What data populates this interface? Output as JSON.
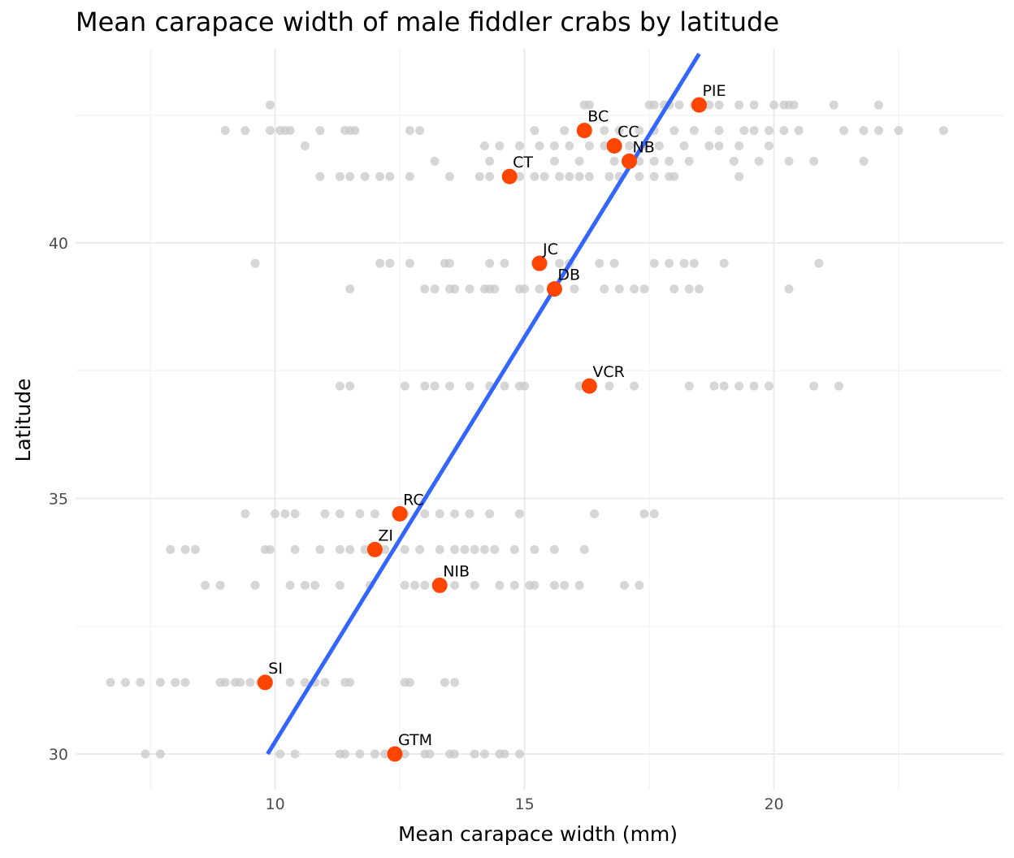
{
  "chart_data": {
    "type": "scatter",
    "title": "Mean carapace width of male fiddler crabs by latitude",
    "xlabel": "Mean carapace width (mm)",
    "ylabel": "Latitude",
    "xlim": [
      6.0,
      24.6
    ],
    "ylim": [
      29.3,
      43.8
    ],
    "x_ticks": [
      10,
      15,
      20
    ],
    "y_ticks": [
      30,
      35,
      40
    ],
    "grid": true,
    "colors": {
      "individual": "#c8c8c8",
      "site_mean": "#ff4500",
      "fit": "#3366ff"
    },
    "fit_line": {
      "x": [
        9.85,
        18.5
      ],
      "y": [
        30.0,
        43.7
      ]
    },
    "individual_points": [
      {
        "y": 42.7,
        "x": [
          9.9,
          16.2,
          16.3,
          17.5,
          17.6,
          17.8,
          17.9,
          18.1,
          18.4,
          18.7,
          18.9,
          19.3,
          19.6,
          20.0,
          20.2,
          20.3,
          20.4,
          21.2,
          22.1
        ]
      },
      {
        "y": 42.2,
        "x": [
          9.0,
          9.4,
          9.9,
          10.1,
          10.2,
          10.3,
          10.9,
          11.4,
          11.5,
          11.6,
          12.7,
          12.9,
          15.2,
          15.8,
          16.2,
          16.6,
          16.9,
          17.3,
          17.6,
          18.0,
          18.4,
          18.9,
          19.4,
          19.6,
          19.9,
          20.2,
          20.5,
          21.4,
          21.8,
          22.1,
          22.5,
          23.4
        ]
      },
      {
        "y": 41.9,
        "x": [
          10.6,
          14.2,
          14.5,
          14.9,
          15.3,
          15.6,
          15.9,
          16.3,
          16.6,
          17.1,
          17.4,
          17.7,
          18.2,
          18.7,
          18.9,
          19.3,
          19.9
        ]
      },
      {
        "y": 41.6,
        "x": [
          13.2,
          14.3,
          15.6,
          16.1,
          16.8,
          17.3,
          17.6,
          17.9,
          18.3,
          19.2,
          19.7,
          20.3,
          20.8,
          21.8
        ]
      },
      {
        "y": 41.3,
        "x": [
          10.9,
          11.3,
          11.5,
          11.8,
          12.1,
          12.3,
          12.7,
          13.5,
          14.1,
          14.3,
          14.9,
          15.2,
          15.4,
          15.7,
          15.9,
          16.1,
          16.3,
          16.7,
          16.9,
          17.3,
          17.6,
          17.9,
          18.0,
          19.3
        ]
      },
      {
        "y": 39.6,
        "x": [
          9.6,
          12.1,
          12.3,
          12.7,
          13.4,
          13.5,
          14.3,
          14.6,
          15.7,
          15.9,
          16.5,
          16.8,
          17.6,
          17.9,
          18.2,
          18.4,
          19.0,
          20.9
        ]
      },
      {
        "y": 39.1,
        "x": [
          11.5,
          13.0,
          13.2,
          13.5,
          13.6,
          13.9,
          14.2,
          14.3,
          14.4,
          14.9,
          15.0,
          15.3,
          16.0,
          16.6,
          16.9,
          17.2,
          17.4,
          18.0,
          18.3,
          18.5,
          20.3
        ]
      },
      {
        "y": 37.2,
        "x": [
          11.3,
          11.5,
          12.6,
          13.0,
          13.2,
          13.5,
          13.9,
          14.3,
          14.6,
          14.9,
          15.0,
          16.1,
          16.7,
          17.2,
          18.3,
          18.8,
          19.0,
          19.3,
          19.6,
          19.9,
          20.8,
          21.3
        ]
      },
      {
        "y": 34.7,
        "x": [
          9.4,
          10.0,
          10.2,
          10.4,
          11.0,
          11.3,
          11.7,
          12.0,
          12.6,
          13.0,
          13.3,
          13.6,
          13.9,
          14.3,
          14.9,
          16.4,
          17.4,
          17.6
        ]
      },
      {
        "y": 34.0,
        "x": [
          7.9,
          8.2,
          8.4,
          9.8,
          9.9,
          10.4,
          10.9,
          11.3,
          11.5,
          11.8,
          12.0,
          12.2,
          12.6,
          12.9,
          13.3,
          13.6,
          13.8,
          14.0,
          14.2,
          14.4,
          14.8,
          15.2,
          15.6,
          16.2
        ]
      },
      {
        "y": 33.3,
        "x": [
          8.6,
          8.9,
          9.6,
          10.3,
          10.6,
          10.8,
          11.3,
          11.9,
          12.6,
          12.8,
          13.0,
          13.3,
          13.6,
          14.0,
          14.5,
          14.8,
          15.1,
          15.2,
          15.6,
          15.8,
          16.1,
          17.0,
          17.3
        ]
      },
      {
        "y": 31.4,
        "x": [
          6.7,
          7.0,
          7.3,
          7.7,
          8.0,
          8.2,
          8.9,
          9.0,
          9.2,
          9.3,
          9.5,
          9.7,
          10.3,
          10.6,
          10.8,
          11.0,
          11.4,
          11.5,
          12.6,
          12.7,
          13.4,
          13.6
        ]
      },
      {
        "y": 30.0,
        "x": [
          7.4,
          7.7,
          10.1,
          10.4,
          11.3,
          11.4,
          11.7,
          12.0,
          12.2,
          12.4,
          12.6,
          13.0,
          13.1,
          13.5,
          13.6,
          14.0,
          14.2,
          14.5,
          14.6,
          14.9
        ]
      }
    ],
    "site_means": [
      {
        "site": "PIE",
        "x": 18.5,
        "y": 42.7
      },
      {
        "site": "BC",
        "x": 16.2,
        "y": 42.2
      },
      {
        "site": "CC",
        "x": 16.8,
        "y": 41.9
      },
      {
        "site": "NB",
        "x": 17.1,
        "y": 41.6
      },
      {
        "site": "CT",
        "x": 14.7,
        "y": 41.3
      },
      {
        "site": "JC",
        "x": 15.3,
        "y": 39.6
      },
      {
        "site": "DB",
        "x": 15.6,
        "y": 39.1
      },
      {
        "site": "VCR",
        "x": 16.3,
        "y": 37.2
      },
      {
        "site": "RC",
        "x": 12.5,
        "y": 34.7
      },
      {
        "site": "ZI",
        "x": 12.0,
        "y": 34.0
      },
      {
        "site": "NIB",
        "x": 13.3,
        "y": 33.3
      },
      {
        "site": "SI",
        "x": 9.8,
        "y": 31.4
      },
      {
        "site": "GTM",
        "x": 12.4,
        "y": 30.0
      }
    ]
  }
}
